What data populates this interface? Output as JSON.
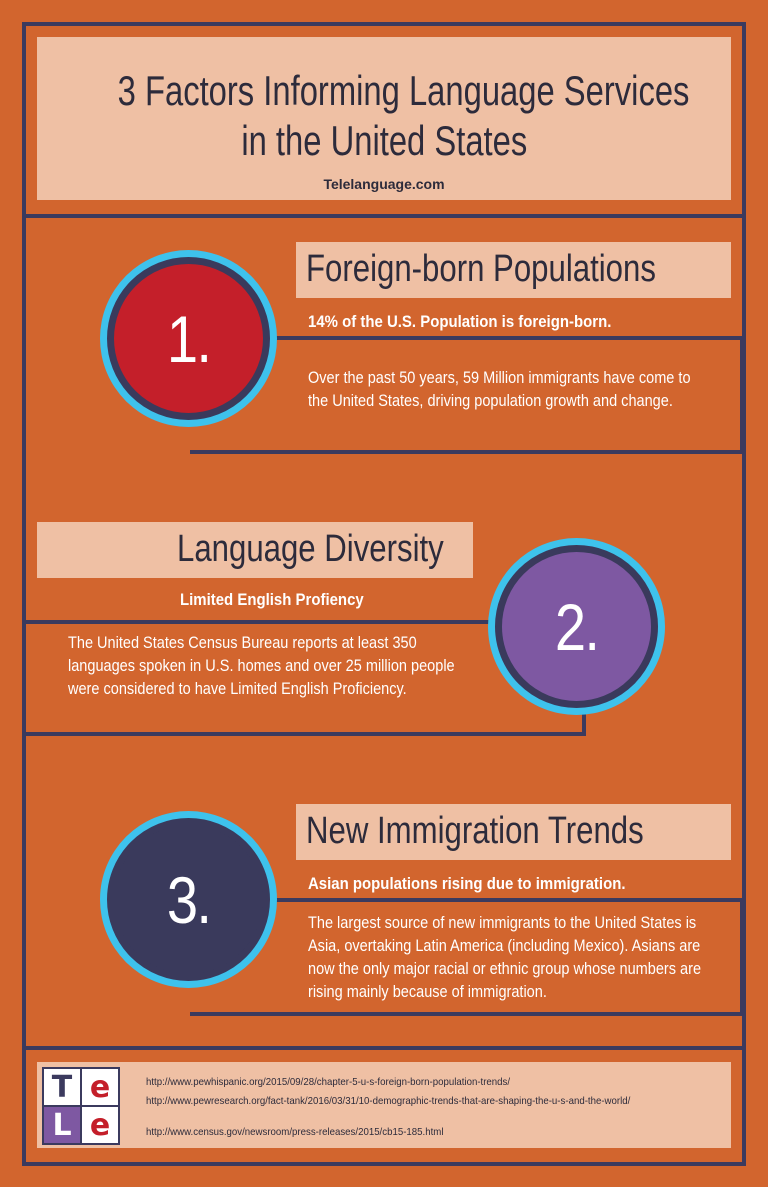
{
  "header": {
    "title_line1": "3 Factors Informing Language Services",
    "title_line2": "in the United States",
    "site": "Telelanguage.com"
  },
  "sections": [
    {
      "number": "1.",
      "title": "Foreign-born Populations",
      "highlight": "14% of the U.S. Population is foreign-born.",
      "body": "Over the past 50 years, 59 Million immigrants have come to the United States, driving population growth and change.",
      "circle_color": "#c41f2a"
    },
    {
      "number": "2.",
      "title": "Language Diversity",
      "highlight": "Limited English Profiency",
      "body": "The United States Census Bureau reports at least 350 languages spoken in U.S. homes and over 25 million people were considered to have Limited English Proficiency.",
      "circle_color": "#7e58a2"
    },
    {
      "number": "3.",
      "title": "New Immigration Trends",
      "highlight": "Asian populations rising due to immigration.",
      "body": "The largest source of new immigrants to the United States is Asia, overtaking Latin America (including Mexico). Asians are now the only major racial or ethnic group whose numbers are rising mainly because of immigration.",
      "circle_color": "#3a3a5c"
    }
  ],
  "logo": {
    "cells": [
      "T",
      "e",
      "L",
      "e"
    ]
  },
  "sources": [
    "http://www.pewhispanic.org/2015/09/28/chapter-5-u-s-foreign-born-population-trends/",
    "http://www.pewresearch.org/fact-tank/2016/03/31/10-demographic-trends-that-are-shaping-the-u-s-and-the-world/",
    "http://www.census.gov/newsroom/press-releases/2015/cb15-185.html"
  ],
  "colors": {
    "background": "#d2652e",
    "frame": "#3b3a5e",
    "panel": "#efc0a4",
    "ring": "#3ec2ec"
  }
}
